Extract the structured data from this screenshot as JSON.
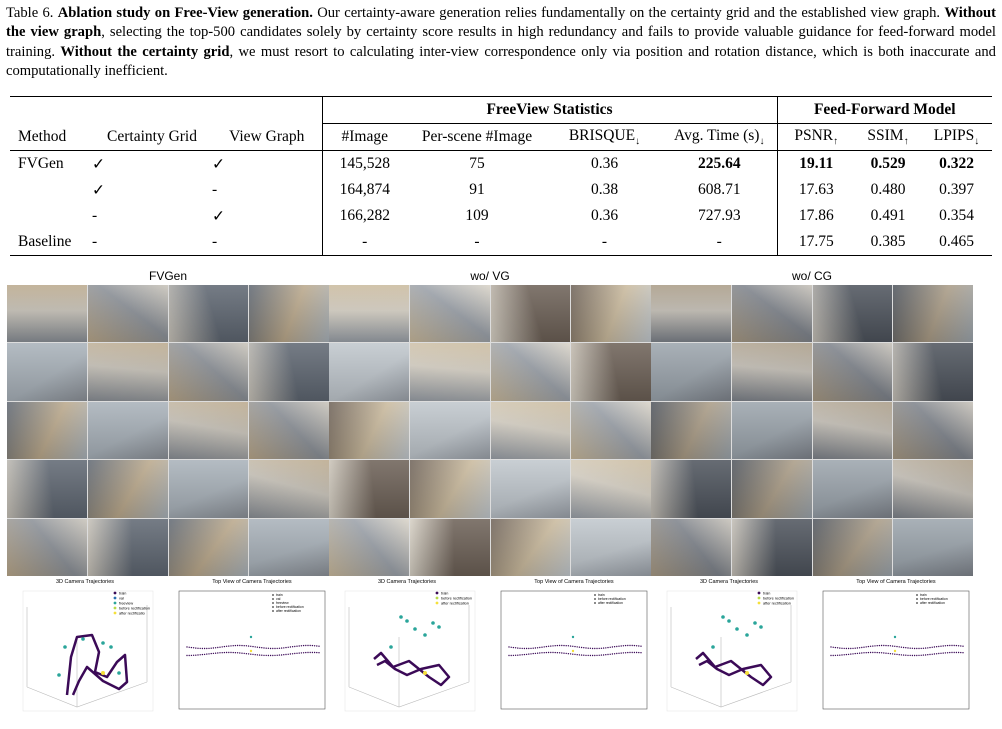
{
  "caption": {
    "label": "Table 6.",
    "title": "Ablation study on Free-View generation.",
    "text1": " Our certainty-aware generation relies fundamentally on the certainty grid and the established view graph. ",
    "bold1": "Without the view graph",
    "text2": ", selecting the top-500 candidates solely by certainty score results in high redundancy and fails to provide valuable guidance for feed-forward model training. ",
    "bold2": "Without the certainty grid",
    "text3": ", we must resort to calculating inter-view correspondence only via position and rotation distance, which is both inaccurate and computationally inefficient."
  },
  "table": {
    "group_headers": [
      "FreeView Statistics",
      "Feed-Forward Model"
    ],
    "columns": [
      "Method",
      "Certainty Grid",
      "View Graph",
      "#Image",
      "Per-scene #Image",
      "BRISQUE",
      "Avg. Time (s)",
      "PSNR",
      "SSIM",
      "LPIPS"
    ],
    "arrows": {
      "down": "↓",
      "up": "↑"
    },
    "rows": [
      [
        "FVGen",
        "✓",
        "✓",
        "145,528",
        "75",
        "0.36",
        "225.64",
        "19.11",
        "0.529",
        "0.322"
      ],
      [
        "",
        "✓",
        "-",
        "164,874",
        "91",
        "0.38",
        "608.71",
        "17.63",
        "0.480",
        "0.397"
      ],
      [
        "",
        "-",
        "✓",
        "166,282",
        "109",
        "0.36",
        "727.93",
        "17.86",
        "0.491",
        "0.354"
      ],
      [
        "Baseline",
        "-",
        "-",
        "-",
        "-",
        "-",
        "-",
        "17.75",
        "0.385",
        "0.465"
      ]
    ]
  },
  "panels": [
    {
      "title": "FVGen",
      "plot3d_title": "3D Camera Trajectories",
      "plottop_title": "Top View of Camera Trajectories",
      "legend3d": [
        "train",
        "val",
        "freeview",
        "before rectification",
        "after rectificatio"
      ],
      "legendtop": [
        "train",
        "val",
        "freeview",
        "before rectification",
        "after rectification"
      ]
    },
    {
      "title": "wo/ VG",
      "plot3d_title": "3D Camera Trajectories",
      "plottop_title": "Top View of Camera Trajectories",
      "legend3d": [
        "train",
        "before rectification",
        "after rectification"
      ],
      "legendtop": [
        "train",
        "before rectification",
        "after rectification"
      ]
    },
    {
      "title": "wo/ CG",
      "plot3d_title": "3D Camera Trajectories",
      "plottop_title": "Top View of Camera Trajectories",
      "legend3d": [
        "train",
        "before rectification",
        "after rectification"
      ],
      "legendtop": [
        "train",
        "before rectification",
        "after rectification"
      ]
    }
  ],
  "colors": {
    "train": "#3b0a57",
    "val": "#2a6fb0",
    "freeview": "#2aa59a",
    "before": "#b8d94a",
    "after": "#f5e03a"
  }
}
